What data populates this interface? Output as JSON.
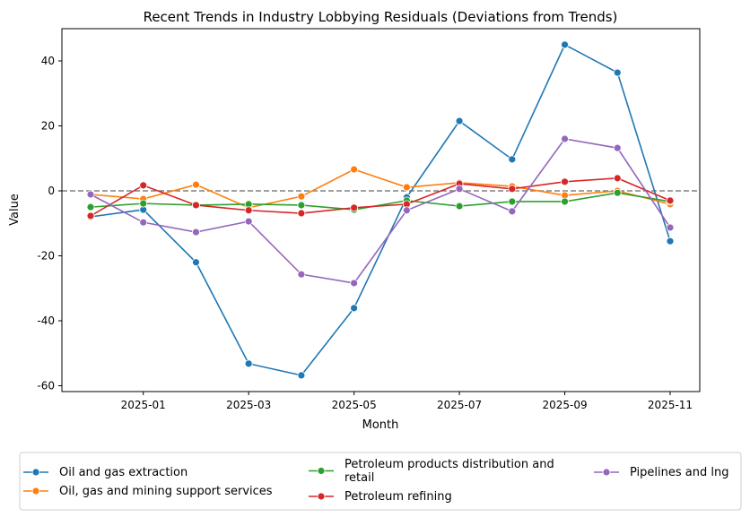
{
  "chart_data": {
    "type": "line",
    "title": "Recent Trends in Industry Lobbying Residuals (Deviations from Trends)",
    "xlabel": "Month",
    "ylabel": "Value",
    "x": [
      "2024-12",
      "2025-01",
      "2025-02",
      "2025-03",
      "2025-04",
      "2025-05",
      "2025-06",
      "2025-07",
      "2025-08",
      "2025-09",
      "2025-10",
      "2025-11"
    ],
    "x_tick_labels": [
      "2025-01",
      "2025-03",
      "2025-05",
      "2025-07",
      "2025-09",
      "2025-11"
    ],
    "y_ticks": [
      40,
      20,
      0,
      -20,
      -40,
      -60
    ],
    "ylim": [
      -62,
      50
    ],
    "grid": false,
    "reference_line": {
      "y": 0,
      "style": "dashed",
      "color": "#808080"
    },
    "legend_placement": "bottom",
    "series": [
      {
        "name": "Oil and gas extraction",
        "color": "#1f77b4",
        "values": [
          -8,
          -5.8,
          -22,
          -53.2,
          -56.8,
          -36.1,
          -2,
          21.5,
          9.7,
          45,
          36.4,
          -15.5
        ]
      },
      {
        "name": "Oil, gas and mining support services",
        "color": "#ff7f0e",
        "values": [
          -1.1,
          -2.5,
          1.9,
          -5.2,
          -1.7,
          6.6,
          1.1,
          2.5,
          1.4,
          -1.4,
          0,
          -4.1
        ]
      },
      {
        "name": "Petroleum products distribution and retail",
        "color": "#2ca02c",
        "values": [
          -5,
          -3.9,
          -4.4,
          -4.1,
          -4.4,
          -5.8,
          -3,
          -4.7,
          -3.3,
          -3.3,
          -0.6,
          -3.3
        ]
      },
      {
        "name": "Petroleum refining",
        "color": "#d62728",
        "values": [
          -7.7,
          1.7,
          -4.4,
          -6,
          -6.9,
          -5.2,
          -4.1,
          2.2,
          0.6,
          2.8,
          3.9,
          -3
        ]
      },
      {
        "name": "Pipelines and lng",
        "color": "#9467bd",
        "values": [
          -1.1,
          -9.7,
          -12.7,
          -9.4,
          -25.7,
          -28.4,
          -6,
          0.6,
          -6.3,
          16,
          13.2,
          -11.3
        ]
      }
    ]
  }
}
